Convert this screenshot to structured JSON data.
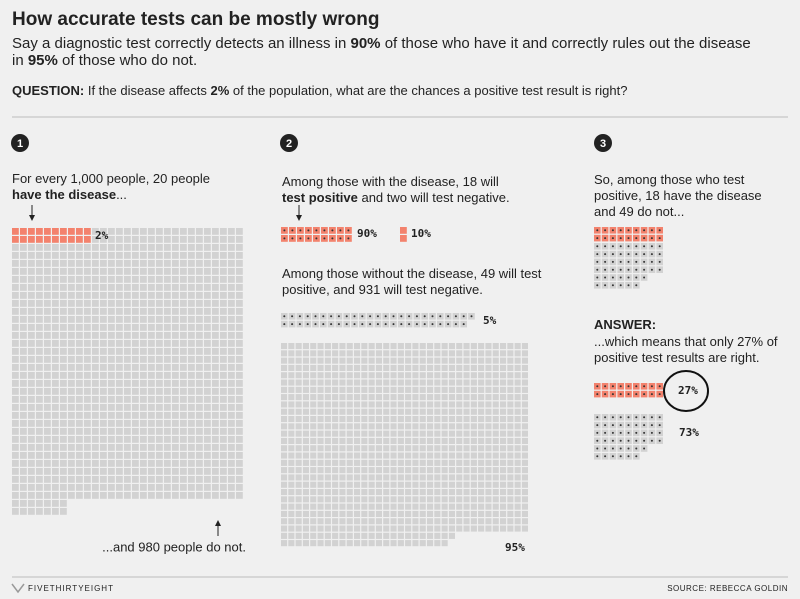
{
  "header": {
    "title": "How accurate tests can be mostly wrong",
    "subtitle": [
      [
        {
          "text": "Say a diagnostic test correctly detects an illness in ",
          "bold": false
        },
        {
          "text": "90%",
          "bold": true
        },
        {
          "text": " of those who have it and correctly rules out the disease",
          "bold": false
        }
      ],
      [
        {
          "text": "in ",
          "bold": false
        },
        {
          "text": "95%",
          "bold": true
        },
        {
          "text": " of those who do not.",
          "bold": false
        }
      ]
    ],
    "question": [
      {
        "text": "QUESTION:",
        "bold": true
      },
      {
        "text": " If the disease affects ",
        "bold": false
      },
      {
        "text": "2%",
        "bold": true
      },
      {
        "text": " of the population, what are the chances a positive test result is right?",
        "bold": false
      }
    ]
  },
  "panels": [
    {
      "number": "1",
      "texts": [
        [
          [
            {
              "text": "For every 1,000 people, 20 people",
              "bold": false
            }
          ],
          [
            {
              "text": "have the disease",
              "bold": true
            },
            {
              "text": "...",
              "bold": false
            }
          ]
        ]
      ],
      "waffles": [
        {
          "segments": [
            {
              "count": 20,
              "color": "#f3826d",
              "dotted": false
            },
            {
              "count": 980,
              "color": "#d2d2d2",
              "dotted": false
            }
          ],
          "label": "2%"
        }
      ],
      "note": "...and 980 people do not."
    },
    {
      "number": "2",
      "texts": [
        [
          [
            {
              "text": "Among those with the disease, 18 will",
              "bold": false
            }
          ],
          [
            {
              "text": "test positive",
              "bold": true
            },
            {
              "text": " and two will test negative.",
              "bold": false
            }
          ]
        ],
        [
          [
            {
              "text": "Among those without the disease, 49 will test",
              "bold": false
            }
          ],
          [
            {
              "text": "positive, and 931 will test negative.",
              "bold": false
            }
          ]
        ]
      ],
      "waffles": [
        {
          "segments": [
            {
              "count": 18,
              "color": "#f3826d",
              "dotted": true
            }
          ],
          "label": "90%"
        },
        {
          "segments": [
            {
              "count": 2,
              "color": "#f3826d",
              "dotted": false
            }
          ],
          "label": "10%"
        },
        {
          "segments": [
            {
              "count": 49,
              "color": "#d2d2d2",
              "dotted": true
            }
          ],
          "label": "5%"
        },
        {
          "segments": [
            {
              "count": 931,
              "color": "#d2d2d2",
              "dotted": false
            }
          ],
          "label": "95%"
        }
      ]
    },
    {
      "number": "3",
      "texts": [
        [
          [
            {
              "text": "So, among those who test",
              "bold": false
            }
          ],
          [
            {
              "text": "positive, 18 have the disease",
              "bold": false
            }
          ],
          [
            {
              "text": "and 49 do not...",
              "bold": false
            }
          ]
        ],
        [
          [
            {
              "text": "ANSWER:",
              "bold": true
            }
          ]
        ],
        [
          [
            {
              "text": "...which means that only 27% of",
              "bold": false
            }
          ],
          [
            {
              "text": "positive test results are right.",
              "bold": false
            }
          ]
        ]
      ],
      "waffles": [
        {
          "segments": [
            {
              "count": 18,
              "color": "#f3826d",
              "dotted": true
            }
          ]
        },
        {
          "segments": [
            {
              "count": 49,
              "color": "#d2d2d2",
              "dotted": true
            }
          ]
        },
        {
          "segments": [
            {
              "count": 18,
              "color": "#f3826d",
              "dotted": true
            }
          ],
          "label": "27%"
        },
        {
          "segments": [
            {
              "count": 49,
              "color": "#d2d2d2",
              "dotted": true
            }
          ],
          "label": "73%"
        }
      ]
    }
  ],
  "footer": {
    "brand": "FIVETHIRTYEIGHT",
    "source": "SOURCE: REBECCA GOLDIN"
  }
}
